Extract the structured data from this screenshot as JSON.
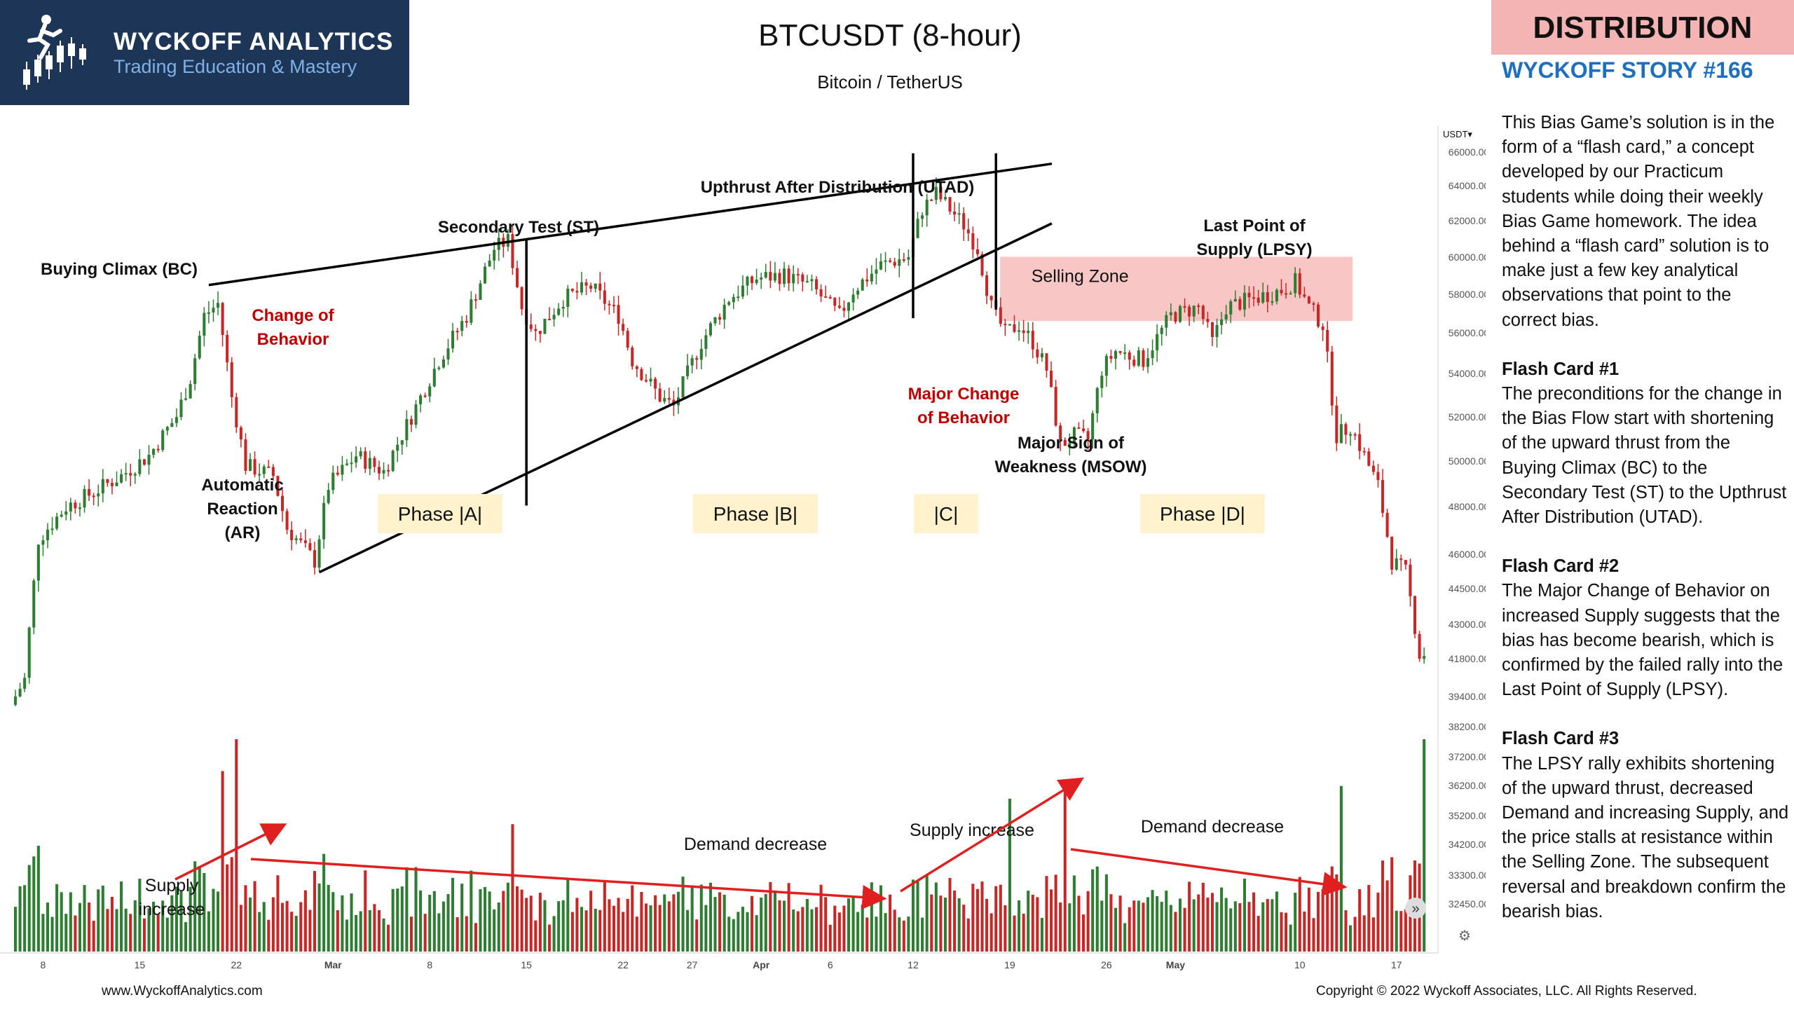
{
  "header": {
    "brand": "WYCKOFF ANALYTICS",
    "tagline": "Trading Education & Mastery",
    "badge": "DISTRIBUTION",
    "story": "WYCKOFF STORY #166"
  },
  "panel": {
    "intro": "This Bias Game’s solution is in the form of a “flash card,” a concept developed by our Practicum students while doing their weekly Bias Game homework. The idea behind a “flash card” solution is to make just a few key analytical observations that point to the correct bias.",
    "cards": [
      {
        "title": "Flash Card #1",
        "text": "The preconditions for the change in the Bias Flow start with shortening of the upward thrust from the Buying Climax (BC) to the Secondary Test (ST) to the Upthrust After Distribution (UTAD)."
      },
      {
        "title": "Flash Card #2",
        "text": "The Major Change of Behavior on increased Supply suggests that the bias has become bearish, which is confirmed by the failed rally into the Last Point of Supply (LPSY)."
      },
      {
        "title": "Flash Card #3",
        "text": "The LPSY rally exhibits shortening of the upward thrust, decreased Demand and increasing Supply, and the price stalls at resistance within the Selling Zone. The subsequent reversal and breakdown confirm the bearish bias."
      }
    ]
  },
  "footer": {
    "website": "www.WyckoffAnalytics.com",
    "copyright": "Copyright © 2022 Wyckoff Associates, LLC. All Rights Reserved."
  },
  "colors": {
    "up": "#2e7d32",
    "down": "#c62828",
    "annotation_red": "#c00000",
    "selling_zone": "#f8bcbc",
    "phase_box": "#fff2cc",
    "badge": "#f4b4b4",
    "story_blue": "#1f6fc1",
    "logo_bg": "#1d3557"
  },
  "chart_data": {
    "type": "candlestick",
    "title": "BTCUSDT (8-hour)",
    "subtitle": "Bitcoin / TetherUS",
    "y_unit": "USDT",
    "y_scale": "log",
    "ylim": [
      31800,
      67000
    ],
    "y_ticks": [
      "66000.00",
      "64000.00",
      "62000.00",
      "60000.00",
      "58000.00",
      "56000.00",
      "54000.00",
      "52000.00",
      "50000.00",
      "48000.00",
      "46000.00",
      "44500.00",
      "43000.00",
      "41800.00",
      "39400.00",
      "38200.00",
      "37200.00",
      "36200.00",
      "35200.00",
      "34200.00",
      "33300.00",
      "32450.00"
    ],
    "x_ticks": [
      {
        "label": "8",
        "date": "2021-02-08"
      },
      {
        "label": "15",
        "date": "2021-02-15"
      },
      {
        "label": "22",
        "date": "2021-02-22"
      },
      {
        "label": "Mar",
        "date": "2021-03-01"
      },
      {
        "label": "8",
        "date": "2021-03-08"
      },
      {
        "label": "15",
        "date": "2021-03-15"
      },
      {
        "label": "22",
        "date": "2021-03-22"
      },
      {
        "label": "27",
        "date": "2021-03-27"
      },
      {
        "label": "Apr",
        "date": "2021-04-01"
      },
      {
        "label": "6",
        "date": "2021-04-06"
      },
      {
        "label": "12",
        "date": "2021-04-12"
      },
      {
        "label": "19",
        "date": "2021-04-19"
      },
      {
        "label": "26",
        "date": "2021-04-26"
      },
      {
        "label": "May",
        "date": "2021-05-01"
      },
      {
        "label": "10",
        "date": "2021-05-10"
      },
      {
        "label": "17",
        "date": "2021-05-17"
      }
    ],
    "bar_interval_hours": 8,
    "price_path": [
      {
        "date": "2021-02-06",
        "price": 38000
      },
      {
        "date": "2021-02-07",
        "price": 39000
      },
      {
        "date": "2021-02-08",
        "price": 45000
      },
      {
        "date": "2021-02-10",
        "price": 46500
      },
      {
        "date": "2021-02-12",
        "price": 47200
      },
      {
        "date": "2021-02-14",
        "price": 48000
      },
      {
        "date": "2021-02-16",
        "price": 49000
      },
      {
        "date": "2021-02-18",
        "price": 51000
      },
      {
        "date": "2021-02-19",
        "price": 53000
      },
      {
        "date": "2021-02-20",
        "price": 56500
      },
      {
        "date": "2021-02-21",
        "price": 57200
      },
      {
        "date": "2021-02-22",
        "price": 52000
      },
      {
        "date": "2021-02-23",
        "price": 48500
      },
      {
        "date": "2021-02-25",
        "price": 48000
      },
      {
        "date": "2021-02-26",
        "price": 45500
      },
      {
        "date": "2021-02-28",
        "price": 44000
      },
      {
        "date": "2021-03-01",
        "price": 47500
      },
      {
        "date": "2021-03-03",
        "price": 49000
      },
      {
        "date": "2021-03-05",
        "price": 48200
      },
      {
        "date": "2021-03-07",
        "price": 51000
      },
      {
        "date": "2021-03-09",
        "price": 54000
      },
      {
        "date": "2021-03-11",
        "price": 56500
      },
      {
        "date": "2021-03-13",
        "price": 60500
      },
      {
        "date": "2021-03-14",
        "price": 61000
      },
      {
        "date": "2021-03-15",
        "price": 57000
      },
      {
        "date": "2021-03-16",
        "price": 55500
      },
      {
        "date": "2021-03-18",
        "price": 57500
      },
      {
        "date": "2021-03-20",
        "price": 58200
      },
      {
        "date": "2021-03-22",
        "price": 56500
      },
      {
        "date": "2021-03-23",
        "price": 54000
      },
      {
        "date": "2021-03-25",
        "price": 52000
      },
      {
        "date": "2021-03-26",
        "price": 51500
      },
      {
        "date": "2021-03-28",
        "price": 55000
      },
      {
        "date": "2021-03-30",
        "price": 57500
      },
      {
        "date": "2021-04-01",
        "price": 58700
      },
      {
        "date": "2021-04-03",
        "price": 58900
      },
      {
        "date": "2021-04-05",
        "price": 58200
      },
      {
        "date": "2021-04-07",
        "price": 56500
      },
      {
        "date": "2021-04-08",
        "price": 58000
      },
      {
        "date": "2021-04-10",
        "price": 59500
      },
      {
        "date": "2021-04-12",
        "price": 60000
      },
      {
        "date": "2021-04-13",
        "price": 63000
      },
      {
        "date": "2021-04-14",
        "price": 64000
      },
      {
        "date": "2021-04-15",
        "price": 63000
      },
      {
        "date": "2021-04-16",
        "price": 62000
      },
      {
        "date": "2021-04-17",
        "price": 60500
      },
      {
        "date": "2021-04-18",
        "price": 57000
      },
      {
        "date": "2021-04-19",
        "price": 55500
      },
      {
        "date": "2021-04-20",
        "price": 56000
      },
      {
        "date": "2021-04-21",
        "price": 55000
      },
      {
        "date": "2021-04-22",
        "price": 53500
      },
      {
        "date": "2021-04-23",
        "price": 49500
      },
      {
        "date": "2021-04-24",
        "price": 50000
      },
      {
        "date": "2021-04-25",
        "price": 49800
      },
      {
        "date": "2021-04-26",
        "price": 53500
      },
      {
        "date": "2021-04-27",
        "price": 54500
      },
      {
        "date": "2021-04-29",
        "price": 54000
      },
      {
        "date": "2021-05-01",
        "price": 56500
      },
      {
        "date": "2021-05-03",
        "price": 57000
      },
      {
        "date": "2021-05-04",
        "price": 55000
      },
      {
        "date": "2021-05-05",
        "price": 57000
      },
      {
        "date": "2021-05-07",
        "price": 57500
      },
      {
        "date": "2021-05-09",
        "price": 58000
      },
      {
        "date": "2021-05-10",
        "price": 58500
      },
      {
        "date": "2021-05-11",
        "price": 57000
      },
      {
        "date": "2021-05-12",
        "price": 56000
      },
      {
        "date": "2021-05-13",
        "price": 50000
      },
      {
        "date": "2021-05-14",
        "price": 50500
      },
      {
        "date": "2021-05-15",
        "price": 49000
      },
      {
        "date": "2021-05-16",
        "price": 47500
      },
      {
        "date": "2021-05-17",
        "price": 44000
      },
      {
        "date": "2021-05-18",
        "price": 43500
      },
      {
        "date": "2021-05-19",
        "price": 40000
      }
    ],
    "volume_spikes": [
      {
        "date": "2021-02-21",
        "level": 0.85
      },
      {
        "date": "2021-02-22",
        "level": 1.0
      },
      {
        "date": "2021-03-14",
        "level": 0.6
      },
      {
        "date": "2021-04-19",
        "level": 0.72
      },
      {
        "date": "2021-04-23",
        "level": 0.76
      },
      {
        "date": "2021-05-13",
        "level": 0.78
      },
      {
        "date": "2021-05-19",
        "level": 1.0
      }
    ],
    "annotations": [
      {
        "text": "Buying Climax (BC)",
        "date": "2021-02-20",
        "price": 57200,
        "color": "black"
      },
      {
        "text": "Secondary Test (ST)",
        "date": "2021-03-13",
        "price": 61000,
        "color": "black"
      },
      {
        "text": "Upthrust After Distribution (UTAD)",
        "date": "2021-04-14",
        "price": 64500,
        "color": "black"
      },
      {
        "text": "Last Point of Supply (LPSY)",
        "date": "2021-05-10",
        "price": 59500,
        "color": "black"
      },
      {
        "text": "Change of Behavior",
        "date": "2021-02-24",
        "price": 54000,
        "color": "red"
      },
      {
        "text": "Automatic Reaction (AR)",
        "date": "2021-02-28",
        "price": 44000,
        "color": "black"
      },
      {
        "text": "Major Change of Behavior",
        "date": "2021-04-20",
        "price": 49500,
        "color": "red"
      },
      {
        "text": "Major Sign of Weakness (MSOW)",
        "date": "2021-04-24",
        "price": 48000,
        "color": "black"
      },
      {
        "text": "Selling Zone",
        "price_range": [
          56200,
          60000
        ],
        "date_range": [
          "2021-04-18",
          "2021-05-12"
        ]
      }
    ],
    "trendlines": [
      {
        "name": "upper",
        "from": {
          "date": "2021-02-20",
          "price": 58300
        },
        "to": {
          "date": "2021-04-19",
          "price": 65500
        }
      },
      {
        "name": "lower",
        "from": {
          "date": "2021-02-28",
          "price": 43500
        },
        "to": {
          "date": "2021-04-19",
          "price": 60500
        }
      }
    ],
    "phases": [
      {
        "label": "Phase |A|",
        "date_range": [
          "2021-02-20",
          "2021-03-15"
        ]
      },
      {
        "label": "Phase |B|",
        "date_range": [
          "2021-03-15",
          "2021-04-13"
        ]
      },
      {
        "label": "|C|",
        "date_range": [
          "2021-04-13",
          "2021-04-18"
        ]
      },
      {
        "label": "Phase |D|",
        "date_range": [
          "2021-04-18",
          "2021-05-19"
        ]
      }
    ],
    "volume_annotations": [
      {
        "text": "Supply increase",
        "position": "left"
      },
      {
        "text": "Demand decrease",
        "position": "middle"
      },
      {
        "text": "Supply increase",
        "position": "right-middle"
      },
      {
        "text": "Demand decrease",
        "position": "right"
      }
    ]
  }
}
